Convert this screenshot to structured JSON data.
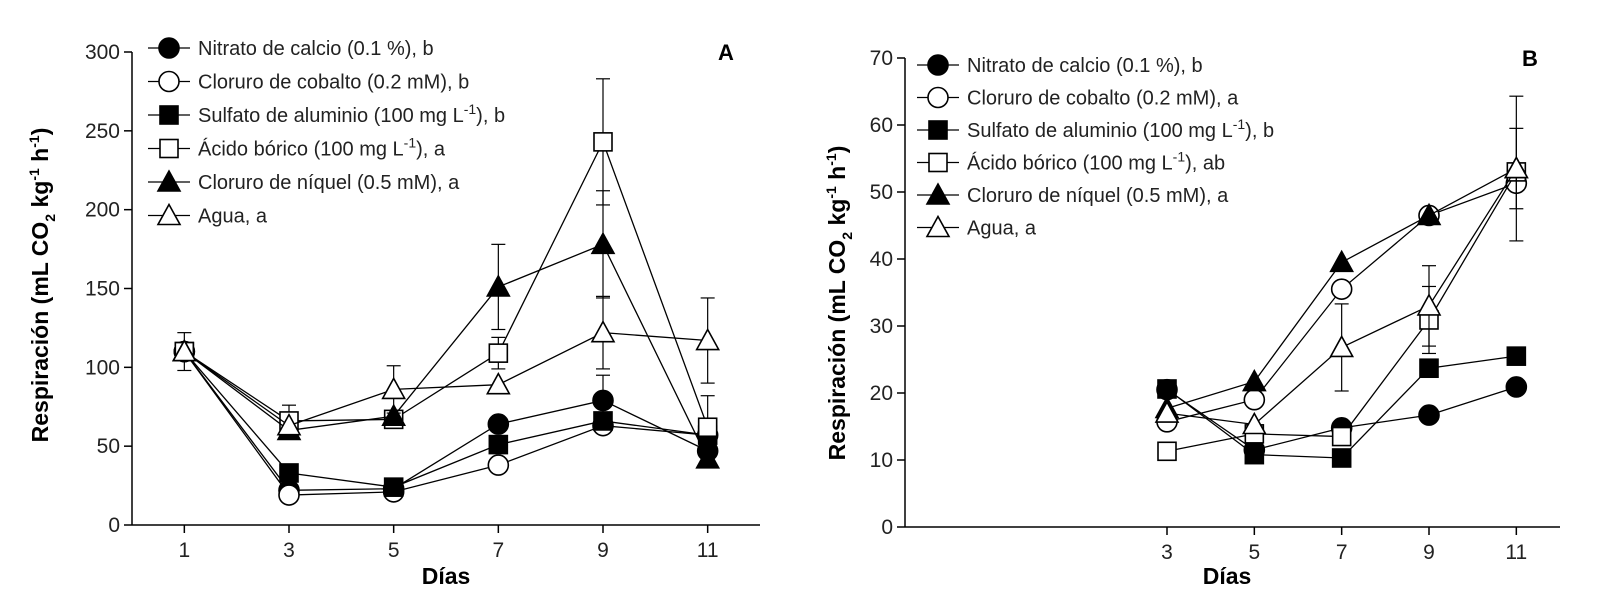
{
  "chart_data": [
    {
      "type": "line",
      "panel": "A",
      "xlabel": "Días",
      "ylabel": {
        "main": "Respiración (mL CO",
        "sub": "2",
        "mid": " kg",
        "sup1": "-1",
        "mid2": " h",
        "sup2": "-1",
        "end": ")"
      },
      "ylim": [
        0,
        300
      ],
      "yticks": [
        0,
        50,
        100,
        150,
        200,
        250,
        300
      ],
      "xticks": [
        1,
        3,
        5,
        7,
        9,
        11
      ],
      "xlim": [
        0,
        12
      ],
      "series": [
        {
          "name": "Nitrato de calcio (0.1 %), b",
          "legend": {
            "text": "Nitrato de calcio (0.1 %), b"
          },
          "marker": "circle",
          "filled": true,
          "x": [
            1,
            3,
            5,
            7,
            9,
            11
          ],
          "values": [
            110,
            22,
            23,
            64,
            79,
            47
          ],
          "err": [
            0,
            0,
            0,
            0,
            16,
            0
          ]
        },
        {
          "name": "Cloruro de cobalto (0.2 mM), b",
          "legend": {
            "text": "Cloruro de cobalto (0.2 mM), b"
          },
          "marker": "circle",
          "filled": false,
          "x": [
            1,
            3,
            5,
            7,
            9,
            11
          ],
          "values": [
            110,
            19,
            21,
            38,
            63,
            57
          ],
          "err": [
            0,
            0,
            0,
            0,
            0,
            0
          ]
        },
        {
          "name": "Sulfato de aluminio (100 mg L-1), b",
          "legend": {
            "pre": "Sulfato de aluminio (100 mg L",
            "sup": "-1",
            "post": "), b"
          },
          "marker": "square",
          "filled": true,
          "x": [
            1,
            3,
            5,
            7,
            9,
            11
          ],
          "values": [
            110,
            33,
            24,
            51,
            66,
            57
          ],
          "err": [
            0,
            5,
            0,
            0,
            0,
            0
          ]
        },
        {
          "name": "Ácido bórico (100 mg L-1), a",
          "legend": {
            "pre": "Ácido bórico (100 mg L",
            "sup": "-1",
            "post": "), a"
          },
          "marker": "square",
          "filled": false,
          "x": [
            1,
            3,
            5,
            7,
            9,
            11
          ],
          "values": [
            110,
            66,
            67,
            109,
            243,
            62
          ],
          "err": [
            0,
            10,
            0,
            10,
            40,
            20
          ]
        },
        {
          "name": "Cloruro de níquel (0.5 mM), a",
          "legend": {
            "text": "Cloruro de níquel (0.5 mM), a"
          },
          "marker": "triangle",
          "filled": true,
          "x": [
            1,
            3,
            5,
            7,
            9,
            11
          ],
          "values": [
            110,
            60,
            69,
            151,
            178,
            42
          ],
          "err": [
            0,
            0,
            0,
            27,
            34,
            0
          ]
        },
        {
          "name": "Agua, a",
          "legend": {
            "text": "Agua, a"
          },
          "marker": "triangle",
          "filled": false,
          "x": [
            1,
            3,
            5,
            7,
            9,
            11
          ],
          "values": [
            110,
            63,
            86,
            89,
            122,
            117
          ],
          "err": [
            12,
            0,
            15,
            0,
            23,
            27
          ]
        }
      ]
    },
    {
      "type": "line",
      "panel": "B",
      "xlabel": "Días",
      "ylabel": {
        "main": "Respiración (mL CO",
        "sub": "2",
        "mid": " kg",
        "sup1": "-1",
        "mid2": " h",
        "sup2": "-1",
        "end": ")"
      },
      "ylim": [
        0,
        70
      ],
      "yticks": [
        0,
        10,
        20,
        30,
        40,
        50,
        60,
        70
      ],
      "xticks": [
        3,
        5,
        7,
        9,
        11
      ],
      "xlim": [
        -3,
        12
      ],
      "series": [
        {
          "name": "Nitrato de calcio (0.1 %), b",
          "legend": {
            "text": "Nitrato de calcio (0.1 %), b"
          },
          "marker": "circle",
          "filled": true,
          "x": [
            3,
            5,
            7,
            9,
            11
          ],
          "values": [
            20.5,
            11.5,
            14.8,
            16.7,
            20.9
          ],
          "err": [
            0,
            0,
            0,
            0,
            0
          ]
        },
        {
          "name": "Cloruro de cobalto (0.2 mM), a",
          "legend": {
            "text": "Cloruro de cobalto (0.2 mM), a"
          },
          "marker": "circle",
          "filled": false,
          "x": [
            3,
            5,
            7,
            9,
            11
          ],
          "values": [
            15.7,
            19.0,
            35.5,
            46.5,
            51.3
          ],
          "err": [
            0,
            0,
            0,
            0,
            0
          ]
        },
        {
          "name": "Sulfato de aluminio (100 mg L-1), b",
          "legend": {
            "pre": "Sulfato de aluminio (100 mg L",
            "sup": "-1",
            "post": "), b"
          },
          "marker": "square",
          "filled": true,
          "x": [
            3,
            5,
            7,
            9,
            11
          ],
          "values": [
            20.6,
            10.8,
            10.3,
            23.7,
            25.5
          ],
          "err": [
            0,
            0,
            0,
            0,
            0
          ]
        },
        {
          "name": "Ácido bórico (100 mg L-1), ab",
          "legend": {
            "pre": "Ácido bórico (100 mg L",
            "sup": "-1",
            "post": "), ab"
          },
          "marker": "square",
          "filled": false,
          "x": [
            3,
            5,
            7,
            9,
            11
          ],
          "values": [
            11.3,
            13.9,
            13.5,
            30.9,
            53.0
          ],
          "err": [
            0,
            0,
            0,
            5,
            0
          ]
        },
        {
          "name": "Cloruro de níquel (0.5 mM), a",
          "legend": {
            "text": "Cloruro de níquel (0.5 mM), a"
          },
          "marker": "triangle",
          "filled": true,
          "x": [
            3,
            5,
            7,
            9,
            11
          ],
          "values": [
            17.7,
            21.7,
            39.5,
            46.5,
            53.5
          ],
          "err": [
            0,
            0,
            0,
            0,
            10.8
          ]
        },
        {
          "name": "Agua, a",
          "legend": {
            "text": "Agua, a"
          },
          "marker": "triangle",
          "filled": false,
          "x": [
            3,
            5,
            7,
            9,
            11
          ],
          "values": [
            17.0,
            15.3,
            26.8,
            33.0,
            53.5
          ],
          "err": [
            0,
            0,
            6.5,
            6.0,
            6.0
          ]
        }
      ]
    }
  ]
}
